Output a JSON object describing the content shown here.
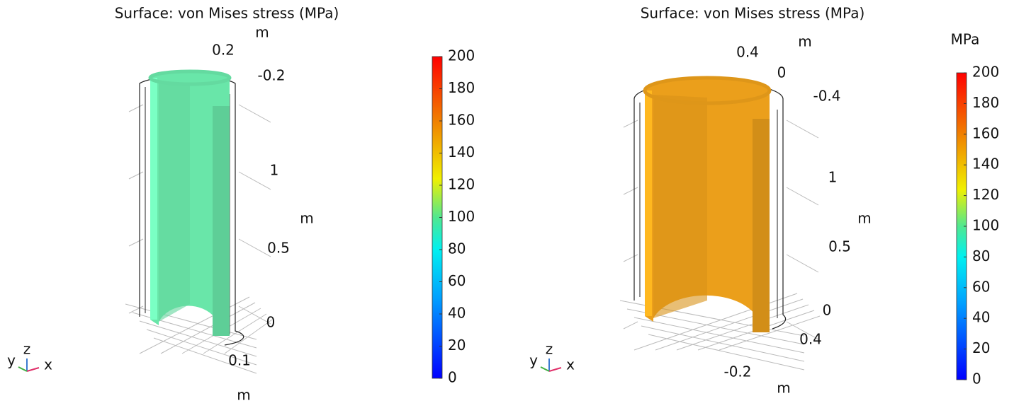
{
  "chart_data": [
    {
      "type": "surface",
      "title": "Surface: von Mises stress (MPa)",
      "color": "#6ff2b2",
      "xticks": [
        0.1
      ],
      "yticks": [
        0.2,
        -0.2
      ],
      "zticks": [
        1,
        0.5,
        0
      ],
      "xlabel": "m",
      "ylabel": "m",
      "zlabel": "m",
      "triad": {
        "y": "y",
        "z": "z",
        "x": "x"
      },
      "colorbar": {
        "ylim": [
          0,
          200
        ],
        "yticks": [
          0,
          20,
          40,
          60,
          80,
          100,
          120,
          140,
          160,
          180,
          200
        ]
      }
    },
    {
      "type": "surface",
      "title": "Surface: von Mises stress (MPa)",
      "color": "#f7a71c",
      "xticks": [
        0.4,
        -0.2
      ],
      "yticks": [
        0.4,
        0,
        -0.4
      ],
      "zticks": [
        1,
        0.5,
        0
      ],
      "xlabel": "m",
      "ylabel": "m",
      "zlabel": "m",
      "triad": {
        "y": "y",
        "z": "z",
        "x": "x"
      },
      "colorbar": {
        "title": "MPa",
        "ylim": [
          0,
          200
        ],
        "yticks": [
          0,
          20,
          40,
          60,
          80,
          100,
          120,
          140,
          160,
          180,
          200
        ]
      }
    }
  ]
}
